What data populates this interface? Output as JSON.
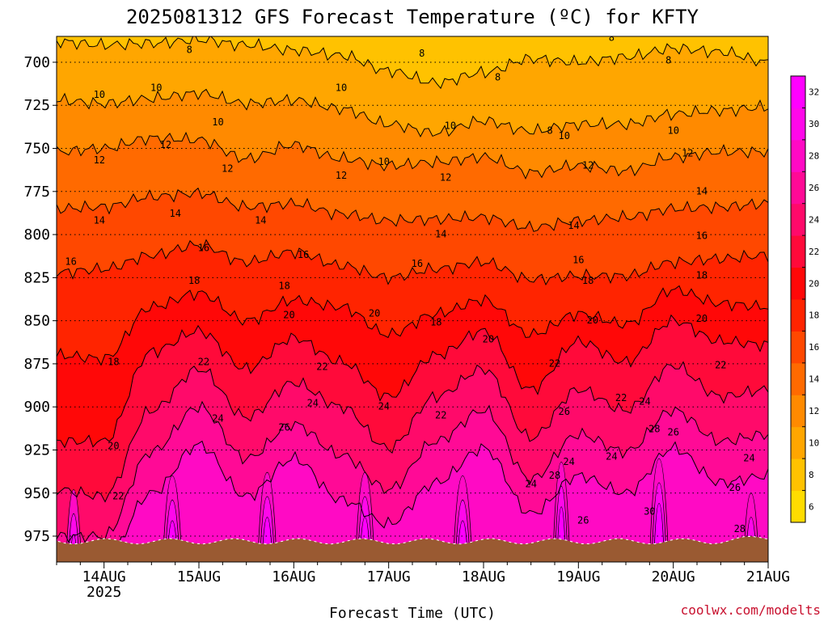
{
  "chart_data": {
    "type": "heatmap",
    "title": "2025081312 GFS Forecast Temperature (ºC) for KFTY",
    "xlabel": "Forecast Time (UTC)",
    "ylabel": "",
    "credit": "coolwx.com/modelts",
    "x_ticks": [
      {
        "label": "14AUG",
        "sub": "2025",
        "day": 14
      },
      {
        "label": "15AUG",
        "sub": "",
        "day": 15
      },
      {
        "label": "16AUG",
        "sub": "",
        "day": 16
      },
      {
        "label": "17AUG",
        "sub": "",
        "day": 17
      },
      {
        "label": "18AUG",
        "sub": "",
        "day": 18
      },
      {
        "label": "19AUG",
        "sub": "",
        "day": 19
      },
      {
        "label": "20AUG",
        "sub": "",
        "day": 20
      },
      {
        "label": "21AUG",
        "sub": "",
        "day": 21
      }
    ],
    "xlim_days": [
      13.5,
      21.0
    ],
    "y_ticks": [
      700,
      725,
      750,
      775,
      800,
      825,
      850,
      875,
      900,
      925,
      950,
      975
    ],
    "ylim_hpa": [
      685,
      990
    ],
    "surface_pressure_hpa": 978,
    "colorbar": {
      "levels": [
        6,
        8,
        10,
        12,
        14,
        16,
        18,
        20,
        22,
        24,
        26,
        28,
        30,
        32
      ],
      "colors": [
        "#ffdc00",
        "#ffc200",
        "#ffa600",
        "#ff8a00",
        "#ff6a00",
        "#ff4800",
        "#ff2400",
        "#ff0808",
        "#ff0a3a",
        "#ff0a6a",
        "#ff0a96",
        "#ff0ac4",
        "#ff08ea",
        "#ff00ff"
      ]
    },
    "profiles": [
      {
        "name": "pressure_at_8C_hpa",
        "values": [
          688,
          690,
          689,
          687,
          690,
          693,
          696,
          705,
          712,
          706,
          698,
          700,
          697,
          692,
          694,
          700
        ]
      },
      {
        "name": "pressure_at_10C_hpa",
        "values": [
          722,
          724,
          721,
          718,
          724,
          722,
          727,
          736,
          741,
          734,
          740,
          736,
          736,
          730,
          728,
          726
        ]
      },
      {
        "name": "pressure_at_12C_hpa",
        "values": [
          752,
          750,
          744,
          745,
          756,
          748,
          756,
          760,
          758,
          755,
          764,
          760,
          763,
          755,
          752,
          752
        ]
      },
      {
        "name": "pressure_at_14C_hpa",
        "values": [
          785,
          784,
          778,
          776,
          784,
          782,
          788,
          792,
          791,
          790,
          796,
          792,
          790,
          785,
          784,
          782
        ]
      },
      {
        "name": "pressure_at_16C_hpa",
        "values": [
          822,
          820,
          812,
          806,
          816,
          810,
          818,
          825,
          820,
          816,
          826,
          824,
          824,
          816,
          814,
          812
        ]
      },
      {
        "name": "pressure_at_18C_hpa",
        "values": [
          870,
          872,
          842,
          834,
          850,
          838,
          842,
          858,
          846,
          838,
          858,
          846,
          852,
          832,
          840,
          842
        ]
      },
      {
        "name": "pressure_at_20C_hpa",
        "values": [
          920,
          920,
          868,
          856,
          878,
          860,
          874,
          894,
          870,
          856,
          890,
          862,
          874,
          850,
          862,
          864
        ]
      },
      {
        "name": "pressure_at_22C_hpa",
        "values": [
          948,
          952,
          902,
          878,
          906,
          886,
          900,
          924,
          894,
          878,
          918,
          890,
          902,
          876,
          894,
          890
        ]
      },
      {
        "name": "pressure_at_24C_hpa",
        "values": [
          975,
          975,
          926,
          900,
          930,
          910,
          928,
          948,
          920,
          902,
          942,
          916,
          926,
          902,
          920,
          916
        ]
      },
      {
        "name": "pressure_at_26C_hpa",
        "values": [
          990,
          990,
          950,
          922,
          952,
          930,
          954,
          968,
          944,
          924,
          962,
          940,
          950,
          924,
          944,
          940
        ]
      }
    ],
    "contour_labels": [
      {
        "text": "8",
        "day": 14.9,
        "p": 693
      },
      {
        "text": "8",
        "day": 17.35,
        "p": 695
      },
      {
        "text": "8",
        "day": 18.15,
        "p": 709
      },
      {
        "text": "8",
        "day": 18.7,
        "p": 740
      },
      {
        "text": "8",
        "day": 19.35,
        "p": 686
      },
      {
        "text": "8",
        "day": 19.95,
        "p": 699
      },
      {
        "text": "10",
        "day": 13.95,
        "p": 719
      },
      {
        "text": "10",
        "day": 14.55,
        "p": 715
      },
      {
        "text": "10",
        "day": 15.2,
        "p": 735
      },
      {
        "text": "10",
        "day": 16.5,
        "p": 715
      },
      {
        "text": "10",
        "day": 16.95,
        "p": 758
      },
      {
        "text": "10",
        "day": 17.65,
        "p": 737
      },
      {
        "text": "10",
        "day": 18.85,
        "p": 743
      },
      {
        "text": "10",
        "day": 20.0,
        "p": 740
      },
      {
        "text": "12",
        "day": 13.95,
        "p": 757
      },
      {
        "text": "12",
        "day": 14.65,
        "p": 748
      },
      {
        "text": "12",
        "day": 15.3,
        "p": 762
      },
      {
        "text": "12",
        "day": 16.5,
        "p": 766
      },
      {
        "text": "12",
        "day": 17.6,
        "p": 767
      },
      {
        "text": "12",
        "day": 19.1,
        "p": 760
      },
      {
        "text": "12",
        "day": 20.15,
        "p": 753
      },
      {
        "text": "14",
        "day": 13.95,
        "p": 792
      },
      {
        "text": "14",
        "day": 14.75,
        "p": 788
      },
      {
        "text": "14",
        "day": 15.65,
        "p": 792
      },
      {
        "text": "14",
        "day": 17.55,
        "p": 800
      },
      {
        "text": "14",
        "day": 18.95,
        "p": 795
      },
      {
        "text": "14",
        "day": 20.3,
        "p": 775
      },
      {
        "text": "16",
        "day": 13.65,
        "p": 816
      },
      {
        "text": "16",
        "day": 15.05,
        "p": 808
      },
      {
        "text": "16",
        "day": 16.1,
        "p": 812
      },
      {
        "text": "16",
        "day": 17.3,
        "p": 817
      },
      {
        "text": "16",
        "day": 19.0,
        "p": 815
      },
      {
        "text": "16",
        "day": 20.3,
        "p": 801
      },
      {
        "text": "18",
        "day": 14.1,
        "p": 874
      },
      {
        "text": "18",
        "day": 14.95,
        "p": 827
      },
      {
        "text": "18",
        "day": 15.9,
        "p": 830
      },
      {
        "text": "18",
        "day": 17.5,
        "p": 851
      },
      {
        "text": "18",
        "day": 19.1,
        "p": 827
      },
      {
        "text": "18",
        "day": 20.3,
        "p": 824
      },
      {
        "text": "20",
        "day": 14.1,
        "p": 923
      },
      {
        "text": "20",
        "day": 15.95,
        "p": 847
      },
      {
        "text": "20",
        "day": 16.85,
        "p": 846
      },
      {
        "text": "20",
        "day": 18.05,
        "p": 861
      },
      {
        "text": "20",
        "day": 19.15,
        "p": 850
      },
      {
        "text": "20",
        "day": 20.3,
        "p": 849
      },
      {
        "text": "22",
        "day": 14.15,
        "p": 952
      },
      {
        "text": "22",
        "day": 15.05,
        "p": 874
      },
      {
        "text": "22",
        "day": 16.3,
        "p": 877
      },
      {
        "text": "22",
        "day": 17.55,
        "p": 905
      },
      {
        "text": "22",
        "day": 18.75,
        "p": 875
      },
      {
        "text": "22",
        "day": 19.45,
        "p": 895
      },
      {
        "text": "22",
        "day": 20.5,
        "p": 876
      },
      {
        "text": "24",
        "day": 15.2,
        "p": 907
      },
      {
        "text": "24",
        "day": 16.2,
        "p": 898
      },
      {
        "text": "24",
        "day": 16.95,
        "p": 900
      },
      {
        "text": "24",
        "day": 18.5,
        "p": 945
      },
      {
        "text": "24",
        "day": 18.9,
        "p": 932
      },
      {
        "text": "24",
        "day": 19.35,
        "p": 929
      },
      {
        "text": "24",
        "day": 19.7,
        "p": 897
      },
      {
        "text": "24",
        "day": 20.8,
        "p": 930
      },
      {
        "text": "26",
        "day": 15.9,
        "p": 912
      },
      {
        "text": "26",
        "day": 18.85,
        "p": 903
      },
      {
        "text": "26",
        "day": 19.05,
        "p": 966
      },
      {
        "text": "26",
        "day": 20.0,
        "p": 915
      },
      {
        "text": "26",
        "day": 20.65,
        "p": 947
      },
      {
        "text": "28",
        "day": 18.75,
        "p": 940
      },
      {
        "text": "28",
        "day": 19.8,
        "p": 913
      },
      {
        "text": "28",
        "day": 20.7,
        "p": 971
      },
      {
        "text": "30",
        "day": 19.75,
        "p": 961
      }
    ]
  }
}
